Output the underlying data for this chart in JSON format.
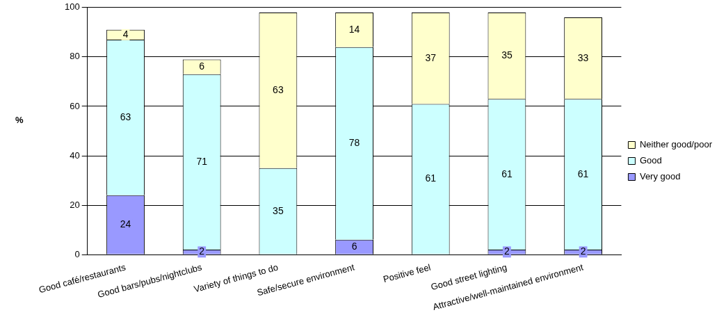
{
  "chart_data": {
    "type": "bar",
    "stacked": true,
    "ylabel": "%",
    "categories": [
      "Good café/restaurants",
      "Good bars/pubs/nightclubs",
      "Variety of things to do",
      "Safe/secure environment",
      "Positive feel",
      "Good street lighting",
      "Attractive/well-maintained environment"
    ],
    "series": [
      {
        "name": "Very good",
        "color": "#9999ff",
        "values": [
          24,
          2,
          null,
          6,
          null,
          2,
          2
        ]
      },
      {
        "name": "Good",
        "color": "#ccffff",
        "values": [
          63,
          71,
          35,
          78,
          61,
          61,
          61
        ]
      },
      {
        "name": "Neither good/poor",
        "color": "#ffffcc",
        "values": [
          4,
          6,
          63,
          14,
          37,
          35,
          33
        ]
      }
    ],
    "ylim": [
      0,
      100
    ],
    "yticks": [
      0,
      20,
      40,
      60,
      80,
      100
    ],
    "grid": "y",
    "legend": "right",
    "data_labels": true
  }
}
